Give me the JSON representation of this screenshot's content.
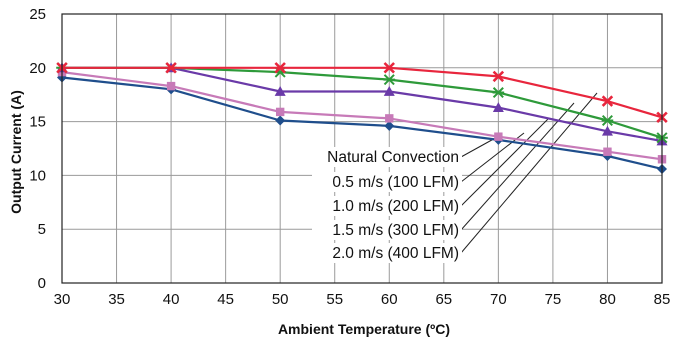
{
  "chart_data": {
    "type": "line",
    "xlabel": "Ambient Temperature (ºC)",
    "ylabel": "Output Current (A)",
    "x_ticks": [
      "30",
      "35",
      "40",
      "45",
      "50",
      "55",
      "60",
      "65",
      "70",
      "75",
      "80",
      "85"
    ],
    "y_ticks": [
      "0",
      "5",
      "10",
      "15",
      "20",
      "25"
    ],
    "xlim": [
      30,
      85
    ],
    "ylim": [
      0,
      25
    ],
    "grid": true,
    "legend_placement": "center-right, inside plot with leader lines",
    "series": [
      {
        "name": "Natural Convection",
        "color": "#1f4e8c",
        "marker": "diamond",
        "x": [
          30,
          40,
          50,
          60,
          70,
          80,
          85
        ],
        "values": [
          19.1,
          18.0,
          15.1,
          14.6,
          13.3,
          11.8,
          10.6
        ]
      },
      {
        "name": "0.5 m/s (100 LFM)",
        "color": "#c77ab8",
        "marker": "square",
        "x": [
          30,
          40,
          50,
          60,
          70,
          80,
          85
        ],
        "values": [
          19.6,
          18.3,
          15.9,
          15.3,
          13.6,
          12.2,
          11.5
        ]
      },
      {
        "name": "1.0 m/s (200 LFM)",
        "color": "#6a3aa8",
        "marker": "triangle",
        "x": [
          30,
          40,
          50,
          60,
          70,
          80,
          85
        ],
        "values": [
          20.0,
          20.0,
          17.8,
          17.8,
          16.3,
          14.1,
          13.2
        ]
      },
      {
        "name": "1.5 m/s (300 LFM)",
        "color": "#2e9a3a",
        "marker": "star",
        "x": [
          30,
          40,
          50,
          60,
          70,
          80,
          85
        ],
        "values": [
          20.0,
          20.0,
          19.6,
          18.9,
          17.7,
          15.1,
          13.5
        ]
      },
      {
        "name": "2.0 m/s (400 LFM)",
        "color": "#e8263d",
        "marker": "cross",
        "x": [
          30,
          40,
          50,
          60,
          70,
          80,
          85
        ],
        "values": [
          20.0,
          20.0,
          20.0,
          20.0,
          19.2,
          16.9,
          15.4
        ]
      }
    ]
  }
}
